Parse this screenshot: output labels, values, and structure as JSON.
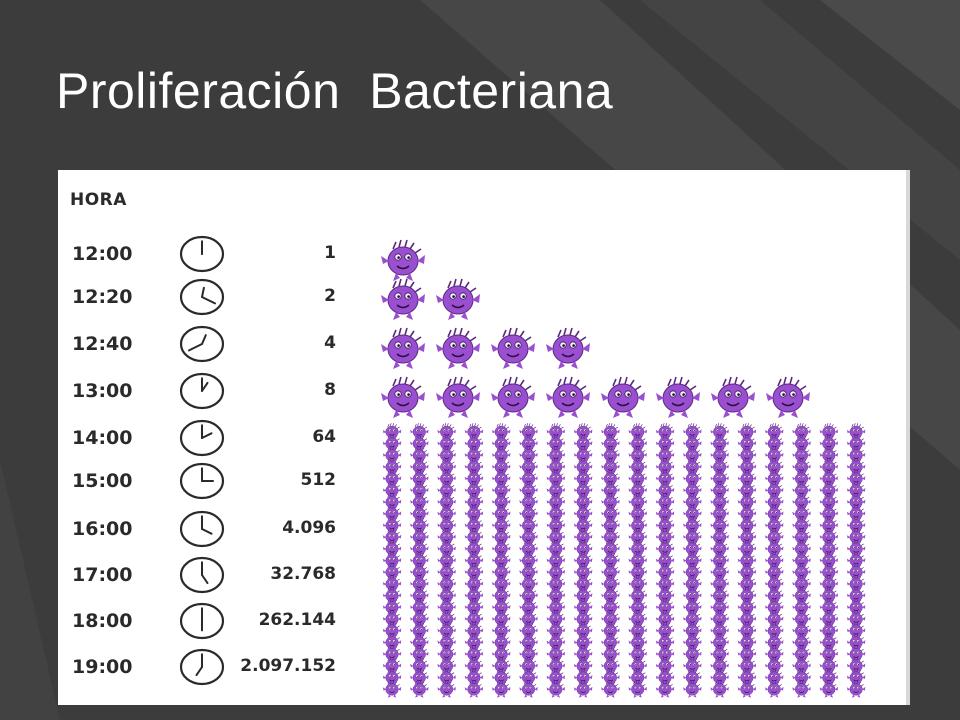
{
  "slide": {
    "title": "Proliferación  Bacteriana"
  },
  "table": {
    "header": "HORA",
    "rows": [
      {
        "time": "12:00",
        "count": "1",
        "bacteria_shown": 1
      },
      {
        "time": "12:20",
        "count": "2",
        "bacteria_shown": 2
      },
      {
        "time": "12:40",
        "count": "4",
        "bacteria_shown": 4
      },
      {
        "time": "13:00",
        "count": "8",
        "bacteria_shown": 8
      },
      {
        "time": "14:00",
        "count": "64",
        "bacteria_shown": 18
      },
      {
        "time": "15:00",
        "count": "512",
        "bacteria_shown": 18
      },
      {
        "time": "16:00",
        "count": "4.096",
        "bacteria_shown": 18
      },
      {
        "time": "17:00",
        "count": "32.768",
        "bacteria_shown": 18
      },
      {
        "time": "18:00",
        "count": "262.144",
        "bacteria_shown": 18
      },
      {
        "time": "19:00",
        "count": "2.097.152",
        "bacteria_shown": 18
      }
    ]
  },
  "colors": {
    "background": "#3c3c3c",
    "bacteria": "#9a4fd0",
    "panel": "#ffffff"
  },
  "icons": {
    "clock": "clock-icon",
    "bacterium": "bacterium-icon"
  }
}
